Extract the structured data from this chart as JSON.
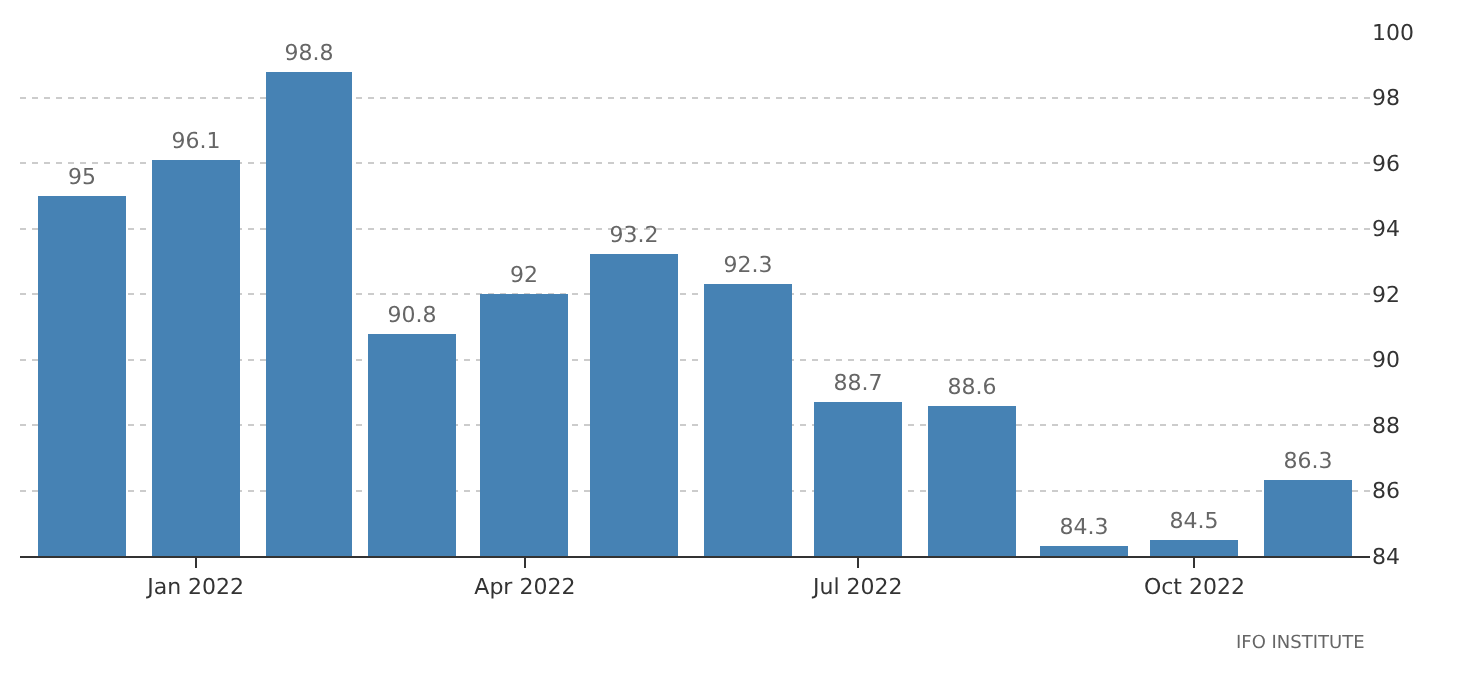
{
  "chart_data": {
    "type": "bar",
    "x": [
      "2021-12",
      "2022-01",
      "2022-02",
      "2022-03",
      "2022-04",
      "2022-05",
      "2022-06",
      "2022-07",
      "2022-08",
      "2022-09",
      "2022-10",
      "2022-11"
    ],
    "values": [
      95,
      96.1,
      98.8,
      90.8,
      92,
      93.2,
      92.3,
      88.7,
      88.6,
      84.3,
      84.5,
      86.3
    ],
    "color": "#4682b4",
    "data_labels": true,
    "xlim": [
      "2021-11-14",
      "2022-11-18"
    ],
    "xticks": [
      {
        "value": "2022-01",
        "label": "Jan 2022"
      },
      {
        "value": "2022-04",
        "label": "Apr 2022"
      },
      {
        "value": "2022-07",
        "label": "Jul 2022"
      },
      {
        "value": "2022-10",
        "label": "Oct 2022"
      }
    ],
    "ylim": [
      84,
      100
    ],
    "yticks": [
      84,
      86,
      88,
      90,
      92,
      94,
      96,
      98,
      100
    ],
    "grid": "y",
    "annotations": [
      "IFO INSTITUTE"
    ]
  }
}
